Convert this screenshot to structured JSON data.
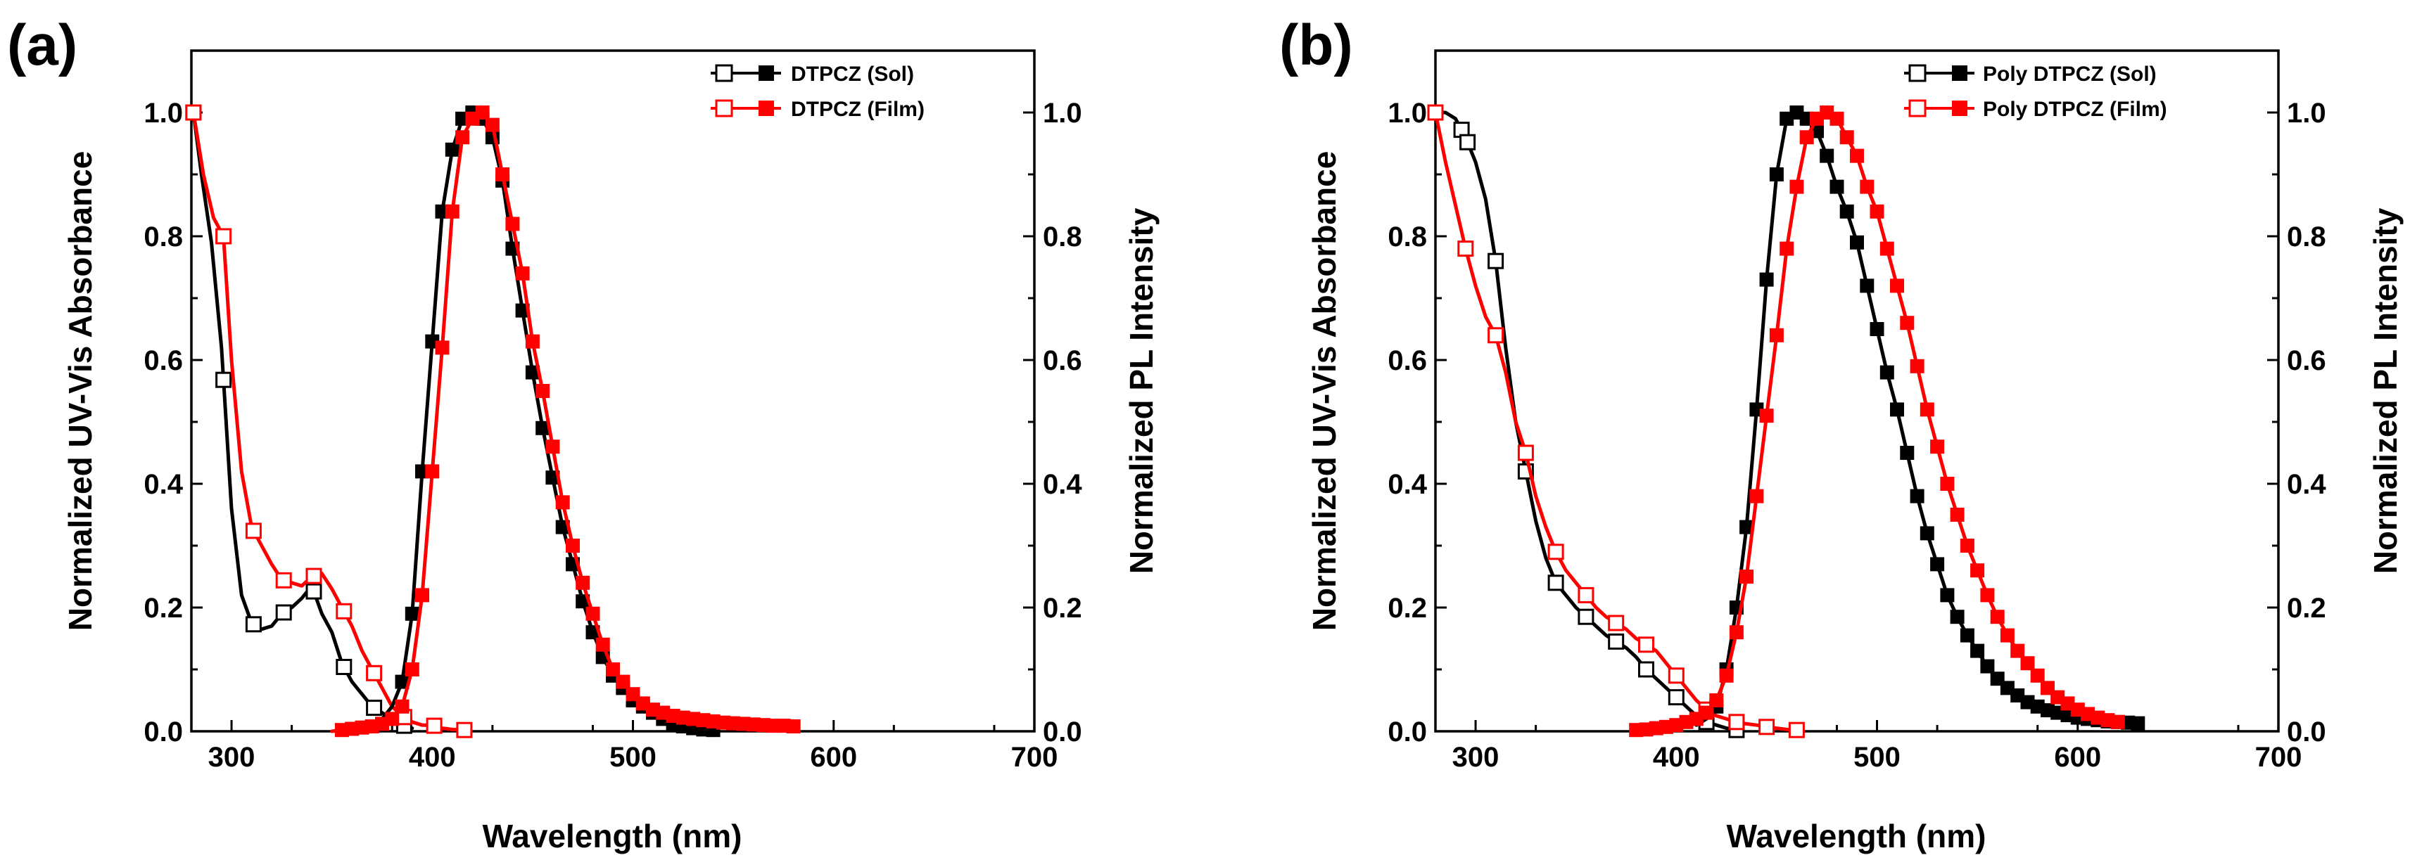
{
  "chart_data": [
    {
      "type": "line",
      "panel_label": "(a)",
      "xlabel": "Wavelength (nm)",
      "ylabel_left": "Normalized UV-Vis Absorbance",
      "ylabel_right": "Normalized PL Intensity",
      "xlim": [
        280,
        700
      ],
      "ylim": [
        0,
        1.1
      ],
      "xticks": [
        300,
        400,
        500,
        600,
        700
      ],
      "yticks": [
        0.0,
        0.2,
        0.4,
        0.6,
        0.8,
        1.0
      ],
      "ytick_labels": [
        "0.0",
        "0.2",
        "0.4",
        "0.6",
        "0.8",
        "1.0"
      ],
      "legend_position": "top-right",
      "legend": [
        {
          "name": "DTPCZ (Sol)",
          "color": "#000000"
        },
        {
          "name": "DTPCZ (Film)",
          "color": "#ff0000"
        }
      ],
      "series": [
        {
          "name": "DTPCZ (Sol) absorbance",
          "color": "#000000",
          "marker": "open-square",
          "x": [
            281,
            285,
            290,
            295,
            300,
            305,
            310,
            315,
            320,
            325,
            330,
            335,
            340,
            345,
            350,
            355,
            360,
            365,
            370,
            375,
            380,
            385,
            390
          ],
          "y": [
            1.0,
            0.9,
            0.79,
            0.62,
            0.36,
            0.22,
            0.175,
            0.165,
            0.17,
            0.19,
            0.2,
            0.215,
            0.235,
            0.19,
            0.16,
            0.11,
            0.08,
            0.06,
            0.04,
            0.03,
            0.02,
            0.01,
            0.005
          ],
          "marker_x": [
            281,
            296,
            311,
            326,
            341,
            356,
            371,
            386
          ]
        },
        {
          "name": "DTPCZ (Film) absorbance",
          "color": "#ff0000",
          "marker": "open-square",
          "x": [
            281,
            286,
            291,
            296,
            300,
            305,
            310,
            315,
            320,
            325,
            330,
            335,
            340,
            345,
            350,
            355,
            360,
            365,
            370,
            375,
            380,
            385,
            390,
            395,
            400,
            405,
            410,
            415
          ],
          "y": [
            1.0,
            0.9,
            0.83,
            0.8,
            0.6,
            0.42,
            0.33,
            0.3,
            0.27,
            0.245,
            0.24,
            0.235,
            0.25,
            0.255,
            0.23,
            0.2,
            0.17,
            0.13,
            0.1,
            0.07,
            0.04,
            0.025,
            0.015,
            0.01,
            0.01,
            0.005,
            0.003,
            0.002
          ],
          "marker_x": [
            281,
            296,
            311,
            326,
            341,
            356,
            371,
            386,
            401,
            416
          ]
        },
        {
          "name": "DTPCZ (Sol) PL",
          "color": "#000000",
          "marker": "filled-square",
          "x": [
            355,
            360,
            365,
            370,
            375,
            380,
            385,
            390,
            395,
            400,
            405,
            410,
            415,
            420,
            425,
            430,
            435,
            440,
            445,
            450,
            455,
            460,
            465,
            470,
            475,
            480,
            485,
            490,
            495,
            500,
            505,
            510,
            515,
            520,
            525,
            530,
            535,
            540
          ],
          "y": [
            0.0,
            0.0,
            0.002,
            0.01,
            0.02,
            0.04,
            0.08,
            0.19,
            0.42,
            0.63,
            0.84,
            0.94,
            0.99,
            1.0,
            0.99,
            0.96,
            0.89,
            0.78,
            0.68,
            0.58,
            0.49,
            0.41,
            0.33,
            0.27,
            0.21,
            0.16,
            0.12,
            0.09,
            0.07,
            0.05,
            0.04,
            0.03,
            0.02,
            0.012,
            0.008,
            0.005,
            0.003,
            0.002
          ],
          "marker_x": [
            385,
            390,
            395,
            400,
            405,
            410,
            415,
            420,
            425,
            430,
            435,
            440,
            445,
            450,
            455,
            460,
            465,
            470,
            475,
            480,
            485,
            490,
            495,
            500,
            505,
            510,
            515,
            520,
            525,
            530,
            535,
            540
          ]
        },
        {
          "name": "DTPCZ (Film) PL",
          "color": "#ff0000",
          "marker": "filled-square",
          "x": [
            350,
            355,
            360,
            365,
            370,
            375,
            380,
            385,
            390,
            395,
            400,
            405,
            410,
            415,
            420,
            425,
            430,
            435,
            440,
            445,
            450,
            455,
            460,
            465,
            470,
            475,
            480,
            485,
            490,
            495,
            500,
            505,
            510,
            515,
            520,
            525,
            530,
            535,
            540,
            545,
            550,
            555,
            560,
            565,
            570,
            575,
            580
          ],
          "y": [
            0.0,
            0.002,
            0.004,
            0.006,
            0.008,
            0.012,
            0.02,
            0.04,
            0.1,
            0.22,
            0.42,
            0.62,
            0.84,
            0.96,
            0.99,
            1.0,
            0.98,
            0.9,
            0.82,
            0.74,
            0.63,
            0.55,
            0.46,
            0.37,
            0.3,
            0.24,
            0.19,
            0.14,
            0.1,
            0.08,
            0.06,
            0.045,
            0.035,
            0.03,
            0.025,
            0.022,
            0.02,
            0.018,
            0.016,
            0.014,
            0.013,
            0.012,
            0.011,
            0.01,
            0.009,
            0.009,
            0.008
          ],
          "marker_x": [
            355,
            360,
            365,
            370,
            375,
            380,
            385,
            390,
            395,
            400,
            405,
            410,
            415,
            420,
            425,
            430,
            435,
            440,
            445,
            450,
            455,
            460,
            465,
            470,
            475,
            480,
            485,
            490,
            495,
            500,
            505,
            510,
            515,
            520,
            525,
            530,
            535,
            540,
            545,
            550,
            555,
            560,
            565,
            570,
            575,
            580
          ]
        }
      ]
    },
    {
      "type": "line",
      "panel_label": "(b)",
      "xlabel": "Wavelength (nm)",
      "ylabel_left": "Normalized UV-Vis Absorbance",
      "ylabel_right": "Normalized PL Intensity",
      "xlim": [
        280,
        700
      ],
      "ylim": [
        0,
        1.1
      ],
      "xticks": [
        300,
        400,
        500,
        600,
        700
      ],
      "yticks": [
        0.0,
        0.2,
        0.4,
        0.6,
        0.8,
        1.0
      ],
      "ytick_labels": [
        "0.0",
        "0.2",
        "0.4",
        "0.6",
        "0.8",
        "1.0"
      ],
      "legend_position": "top-right",
      "legend": [
        {
          "name": "Poly DTPCZ (Sol)",
          "color": "#000000"
        },
        {
          "name": "Poly DTPCZ (Film)",
          "color": "#ff0000"
        }
      ],
      "series": [
        {
          "name": "Poly DTPCZ (Sol) absorbance",
          "color": "#000000",
          "marker": "open-square",
          "x": [
            280,
            285,
            290,
            295,
            300,
            305,
            310,
            315,
            320,
            325,
            330,
            335,
            340,
            345,
            350,
            355,
            360,
            365,
            370,
            375,
            380,
            385,
            390,
            395,
            400,
            405,
            410,
            415,
            420,
            425,
            430
          ],
          "y": [
            1.0,
            1.0,
            0.99,
            0.96,
            0.92,
            0.86,
            0.76,
            0.62,
            0.5,
            0.42,
            0.34,
            0.28,
            0.24,
            0.22,
            0.2,
            0.185,
            0.17,
            0.155,
            0.145,
            0.135,
            0.12,
            0.1,
            0.085,
            0.07,
            0.055,
            0.04,
            0.025,
            0.015,
            0.01,
            0.005,
            0.002
          ],
          "marker_x": [
            293,
            296,
            310,
            325,
            340,
            355,
            370,
            385,
            400,
            415,
            430
          ]
        },
        {
          "name": "Poly DTPCZ (Film) absorbance",
          "color": "#ff0000",
          "marker": "open-square",
          "x": [
            280,
            285,
            290,
            295,
            300,
            305,
            310,
            315,
            320,
            325,
            330,
            335,
            340,
            345,
            350,
            355,
            360,
            365,
            370,
            375,
            380,
            385,
            390,
            395,
            400,
            405,
            410,
            415,
            420,
            425,
            430,
            435,
            440,
            445,
            450,
            455,
            460
          ],
          "y": [
            1.0,
            0.92,
            0.85,
            0.78,
            0.72,
            0.67,
            0.64,
            0.58,
            0.5,
            0.45,
            0.38,
            0.33,
            0.29,
            0.26,
            0.24,
            0.22,
            0.2,
            0.185,
            0.175,
            0.165,
            0.15,
            0.14,
            0.13,
            0.11,
            0.09,
            0.07,
            0.05,
            0.035,
            0.025,
            0.02,
            0.015,
            0.012,
            0.01,
            0.007,
            0.005,
            0.003,
            0.002
          ],
          "marker_x": [
            280,
            295,
            310,
            325,
            340,
            355,
            370,
            385,
            400,
            415,
            430,
            445,
            460
          ]
        },
        {
          "name": "Poly DTPCZ (Sol) PL",
          "color": "#000000",
          "marker": "filled-square",
          "x": [
            410,
            415,
            420,
            425,
            430,
            435,
            440,
            445,
            450,
            455,
            460,
            465,
            470,
            475,
            480,
            485,
            490,
            495,
            500,
            505,
            510,
            515,
            520,
            525,
            530,
            535,
            540,
            545,
            550,
            555,
            560,
            565,
            570,
            575,
            580,
            585,
            590,
            595,
            600,
            605,
            610,
            615,
            620,
            625,
            630
          ],
          "y": [
            0.01,
            0.02,
            0.04,
            0.1,
            0.2,
            0.33,
            0.52,
            0.73,
            0.9,
            0.99,
            1.0,
            0.99,
            0.97,
            0.93,
            0.88,
            0.84,
            0.79,
            0.72,
            0.65,
            0.58,
            0.52,
            0.45,
            0.38,
            0.32,
            0.27,
            0.22,
            0.185,
            0.155,
            0.13,
            0.105,
            0.085,
            0.07,
            0.058,
            0.047,
            0.04,
            0.034,
            0.03,
            0.026,
            0.022,
            0.02,
            0.018,
            0.016,
            0.015,
            0.014,
            0.013
          ],
          "marker_x": [
            420,
            425,
            430,
            435,
            440,
            445,
            450,
            455,
            460,
            465,
            470,
            475,
            480,
            485,
            490,
            495,
            500,
            505,
            510,
            515,
            520,
            525,
            530,
            535,
            540,
            545,
            550,
            555,
            560,
            565,
            570,
            575,
            580,
            585,
            590,
            595,
            600,
            605,
            610,
            615,
            620,
            625,
            630
          ]
        },
        {
          "name": "Poly DTPCZ (Film) PL",
          "color": "#ff0000",
          "marker": "filled-square",
          "x": [
            380,
            385,
            390,
            395,
            400,
            405,
            410,
            415,
            420,
            425,
            430,
            435,
            440,
            445,
            450,
            455,
            460,
            465,
            470,
            475,
            480,
            485,
            490,
            495,
            500,
            505,
            510,
            515,
            520,
            525,
            530,
            535,
            540,
            545,
            550,
            555,
            560,
            565,
            570,
            575,
            580,
            585,
            590,
            595,
            600,
            605,
            610,
            615,
            620
          ],
          "y": [
            0.002,
            0.003,
            0.005,
            0.007,
            0.01,
            0.015,
            0.02,
            0.03,
            0.05,
            0.09,
            0.16,
            0.25,
            0.38,
            0.51,
            0.64,
            0.78,
            0.88,
            0.96,
            0.99,
            1.0,
            0.99,
            0.96,
            0.93,
            0.88,
            0.84,
            0.78,
            0.72,
            0.66,
            0.59,
            0.52,
            0.46,
            0.4,
            0.35,
            0.3,
            0.26,
            0.22,
            0.185,
            0.155,
            0.13,
            0.11,
            0.09,
            0.07,
            0.055,
            0.045,
            0.035,
            0.028,
            0.022,
            0.018,
            0.015
          ],
          "marker_x": [
            380,
            385,
            390,
            395,
            400,
            405,
            410,
            415,
            420,
            425,
            430,
            435,
            440,
            445,
            450,
            455,
            460,
            465,
            470,
            475,
            480,
            485,
            490,
            495,
            500,
            505,
            510,
            515,
            520,
            525,
            530,
            535,
            540,
            545,
            550,
            555,
            560,
            565,
            570,
            575,
            580,
            585,
            590,
            595,
            600,
            605,
            610,
            615,
            620
          ]
        }
      ]
    }
  ]
}
